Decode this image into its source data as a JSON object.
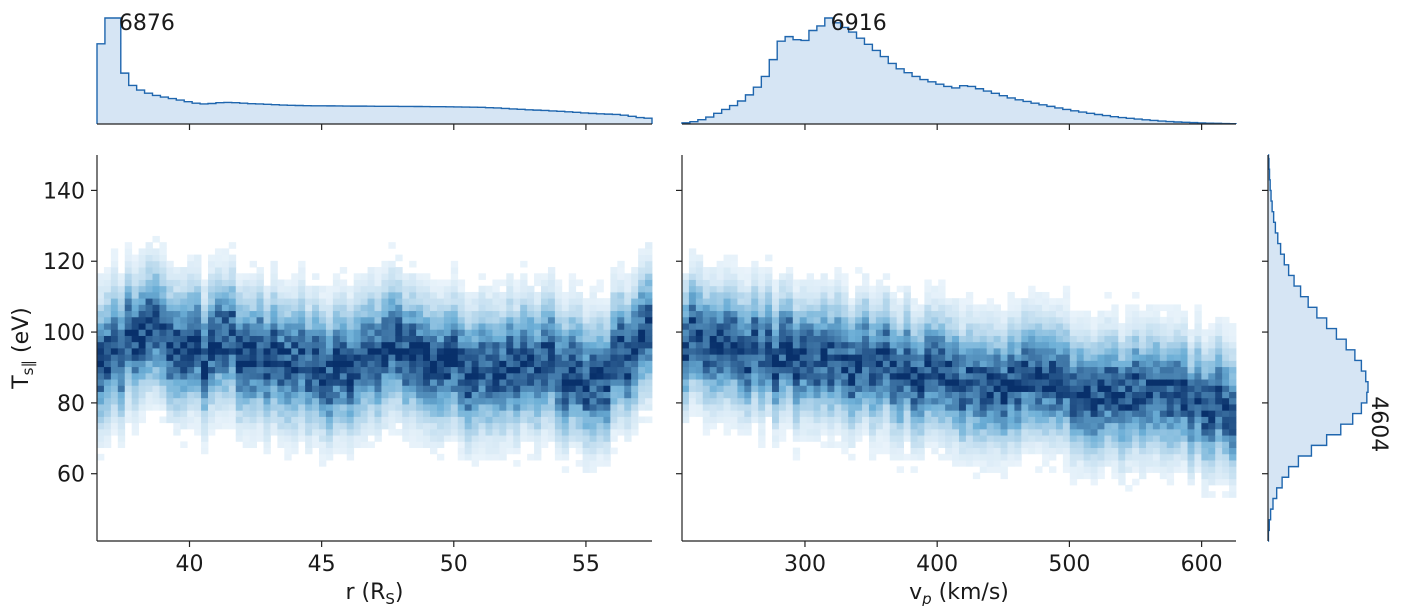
{
  "colors": {
    "fill": "#d6e5f4",
    "line": "#1f66ae",
    "cmap_low": "#f7fbff",
    "cmap_high": "#08306b",
    "axis": "#222222"
  },
  "chart_data": [
    {
      "id": "hist_r",
      "type": "histogram",
      "orientation": "vertical",
      "x_range": [
        36.5,
        57.5
      ],
      "bins": [
        [
          36.5,
          5200
        ],
        [
          36.8,
          6876
        ],
        [
          37.1,
          6876
        ],
        [
          37.4,
          3300
        ],
        [
          37.7,
          2500
        ],
        [
          38.0,
          2200
        ],
        [
          38.3,
          2000
        ],
        [
          38.6,
          1850
        ],
        [
          38.9,
          1750
        ],
        [
          39.2,
          1650
        ],
        [
          39.5,
          1550
        ],
        [
          39.8,
          1450
        ],
        [
          40.1,
          1350
        ],
        [
          40.4,
          1300
        ],
        [
          40.7,
          1330
        ],
        [
          41.0,
          1380
        ],
        [
          41.3,
          1400
        ],
        [
          41.6,
          1380
        ],
        [
          41.9,
          1350
        ],
        [
          42.2,
          1320
        ],
        [
          42.5,
          1300
        ],
        [
          42.8,
          1280
        ],
        [
          43.1,
          1250
        ],
        [
          43.4,
          1230
        ],
        [
          43.7,
          1210
        ],
        [
          44.0,
          1200
        ],
        [
          44.3,
          1190
        ],
        [
          44.6,
          1180
        ],
        [
          44.9,
          1180
        ],
        [
          45.2,
          1175
        ],
        [
          45.5,
          1170
        ],
        [
          45.8,
          1165
        ],
        [
          46.1,
          1160
        ],
        [
          46.4,
          1160
        ],
        [
          46.7,
          1155
        ],
        [
          47.0,
          1150
        ],
        [
          47.3,
          1150
        ],
        [
          47.6,
          1145
        ],
        [
          47.9,
          1140
        ],
        [
          48.2,
          1140
        ],
        [
          48.5,
          1135
        ],
        [
          48.8,
          1130
        ],
        [
          49.1,
          1125
        ],
        [
          49.4,
          1120
        ],
        [
          49.7,
          1115
        ],
        [
          50.0,
          1110
        ],
        [
          50.3,
          1100
        ],
        [
          50.6,
          1090
        ],
        [
          50.9,
          1080
        ],
        [
          51.2,
          1060
        ],
        [
          51.5,
          1040
        ],
        [
          51.8,
          1010
        ],
        [
          52.1,
          980
        ],
        [
          52.4,
          950
        ],
        [
          52.7,
          920
        ],
        [
          53.0,
          900
        ],
        [
          53.3,
          880
        ],
        [
          53.6,
          850
        ],
        [
          53.9,
          820
        ],
        [
          54.2,
          790
        ],
        [
          54.5,
          760
        ],
        [
          54.8,
          720
        ],
        [
          55.1,
          690
        ],
        [
          55.4,
          660
        ],
        [
          55.7,
          640
        ],
        [
          56.0,
          620
        ],
        [
          56.3,
          570
        ],
        [
          56.6,
          500
        ],
        [
          56.9,
          420
        ],
        [
          57.2,
          380
        ]
      ],
      "peak_label": "6876",
      "peak_at": [
        37.1,
        6876
      ]
    },
    {
      "id": "hist_vp",
      "type": "histogram",
      "orientation": "vertical",
      "x_range": [
        207,
        626
      ],
      "bins": [
        [
          207,
          80
        ],
        [
          213,
          150
        ],
        [
          219,
          280
        ],
        [
          225,
          450
        ],
        [
          231,
          700
        ],
        [
          237,
          950
        ],
        [
          243,
          1200
        ],
        [
          249,
          1500
        ],
        [
          255,
          1900
        ],
        [
          261,
          2400
        ],
        [
          267,
          3100
        ],
        [
          273,
          4200
        ],
        [
          279,
          5400
        ],
        [
          285,
          5700
        ],
        [
          291,
          5500
        ],
        [
          297,
          5450
        ],
        [
          303,
          6100
        ],
        [
          309,
          6400
        ],
        [
          315,
          6916
        ],
        [
          321,
          6600
        ],
        [
          327,
          6300
        ],
        [
          333,
          6000
        ],
        [
          339,
          5600
        ],
        [
          345,
          5200
        ],
        [
          351,
          4800
        ],
        [
          357,
          4400
        ],
        [
          363,
          3950
        ],
        [
          369,
          3600
        ],
        [
          375,
          3350
        ],
        [
          381,
          3100
        ],
        [
          387,
          2900
        ],
        [
          393,
          2750
        ],
        [
          399,
          2600
        ],
        [
          405,
          2450
        ],
        [
          411,
          2350
        ],
        [
          417,
          2500
        ],
        [
          423,
          2450
        ],
        [
          429,
          2300
        ],
        [
          435,
          2150
        ],
        [
          441,
          2000
        ],
        [
          447,
          1850
        ],
        [
          453,
          1700
        ],
        [
          459,
          1580
        ],
        [
          465,
          1470
        ],
        [
          471,
          1360
        ],
        [
          477,
          1250
        ],
        [
          483,
          1150
        ],
        [
          489,
          1050
        ],
        [
          495,
          950
        ],
        [
          501,
          860
        ],
        [
          507,
          780
        ],
        [
          513,
          700
        ],
        [
          519,
          620
        ],
        [
          525,
          550
        ],
        [
          531,
          480
        ],
        [
          537,
          420
        ],
        [
          543,
          370
        ],
        [
          549,
          320
        ],
        [
          555,
          270
        ],
        [
          561,
          230
        ],
        [
          567,
          190
        ],
        [
          573,
          160
        ],
        [
          579,
          130
        ],
        [
          585,
          110
        ],
        [
          591,
          90
        ],
        [
          597,
          70
        ],
        [
          603,
          55
        ],
        [
          609,
          40
        ],
        [
          615,
          30
        ],
        [
          621,
          20
        ]
      ],
      "peak_label": "6916",
      "peak_at": [
        315,
        6916
      ]
    },
    {
      "id": "heatmap_r_T",
      "type": "heatmap",
      "xlabel_text": "r (R",
      "xlabel_sub": "S",
      "xlabel_tail": ")",
      "ylabel_text": "T",
      "ylabel_sub": "s∥",
      "ylabel_tail": "  (eV)",
      "x_range": [
        36.5,
        57.5
      ],
      "y_range": [
        41,
        150
      ],
      "x_ticks": [
        40,
        45,
        50,
        55
      ],
      "x_tick_labels": [
        "40",
        "45",
        "50",
        "55"
      ],
      "y_ticks": [
        60,
        80,
        100,
        120,
        140
      ],
      "y_tick_labels": [
        "60",
        "80",
        "100",
        "120",
        "140"
      ],
      "ridge": [
        [
          36.5,
          92
        ],
        [
          37.5,
          96
        ],
        [
          38.5,
          102
        ],
        [
          39.5,
          97
        ],
        [
          40.5,
          94
        ],
        [
          41.5,
          97
        ],
        [
          42.5,
          92
        ],
        [
          43.5,
          94
        ],
        [
          44.5,
          90
        ],
        [
          45.5,
          90
        ],
        [
          46.5,
          92
        ],
        [
          47.5,
          96
        ],
        [
          48.5,
          93
        ],
        [
          49.5,
          91
        ],
        [
          50.5,
          90
        ],
        [
          51.5,
          87
        ],
        [
          52.5,
          90
        ],
        [
          53.5,
          92
        ],
        [
          54.5,
          88
        ],
        [
          55.5,
          86
        ],
        [
          56.5,
          94
        ],
        [
          57.5,
          100
        ]
      ],
      "spread": 9.5
    },
    {
      "id": "heatmap_vp_T",
      "type": "heatmap",
      "xlabel_text": "v",
      "xlabel_sub": "p",
      "xlabel_tail": " (km/s)",
      "x_range": [
        207,
        626
      ],
      "y_range": [
        41,
        150
      ],
      "x_ticks": [
        300,
        400,
        500,
        600
      ],
      "x_tick_labels": [
        "300",
        "400",
        "500",
        "600"
      ],
      "y_ticks": [
        60,
        80,
        100,
        120,
        140
      ],
      "ridge": [
        [
          207,
          98
        ],
        [
          250,
          95
        ],
        [
          300,
          93
        ],
        [
          350,
          91
        ],
        [
          400,
          88
        ],
        [
          450,
          86
        ],
        [
          500,
          84
        ],
        [
          550,
          82
        ],
        [
          600,
          80
        ],
        [
          626,
          79
        ]
      ],
      "spread": 9.0
    },
    {
      "id": "hist_T",
      "type": "histogram",
      "orientation": "horizontal",
      "y_range": [
        41,
        150
      ],
      "bins": [
        [
          41,
          20
        ],
        [
          44,
          60
        ],
        [
          47,
          120
        ],
        [
          50,
          230
        ],
        [
          53,
          400
        ],
        [
          56,
          650
        ],
        [
          59,
          950
        ],
        [
          62,
          1400
        ],
        [
          65,
          2000
        ],
        [
          68,
          2700
        ],
        [
          71,
          3350
        ],
        [
          74,
          3900
        ],
        [
          77,
          4300
        ],
        [
          80,
          4550
        ],
        [
          83,
          4604
        ],
        [
          86,
          4500
        ],
        [
          89,
          4300
        ],
        [
          92,
          4000
        ],
        [
          95,
          3600
        ],
        [
          98,
          3150
        ],
        [
          101,
          2700
        ],
        [
          104,
          2250
        ],
        [
          107,
          1850
        ],
        [
          110,
          1500
        ],
        [
          113,
          1200
        ],
        [
          116,
          950
        ],
        [
          119,
          750
        ],
        [
          122,
          580
        ],
        [
          125,
          450
        ],
        [
          128,
          340
        ],
        [
          131,
          260
        ],
        [
          134,
          190
        ],
        [
          137,
          140
        ],
        [
          140,
          100
        ],
        [
          143,
          70
        ],
        [
          146,
          45
        ],
        [
          149,
          25
        ]
      ],
      "peak_label": "4604",
      "peak_at": [
        83,
        4604
      ]
    }
  ]
}
